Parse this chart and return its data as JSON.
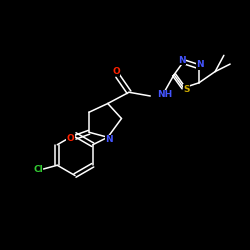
{
  "bg_color": "#000000",
  "bond_color": "#ffffff",
  "atom_colors": {
    "N": "#4455ff",
    "O": "#ff2200",
    "S": "#ccaa00",
    "Cl": "#33cc33",
    "C": "#ffffff"
  },
  "font_size": 6.5,
  "fig_width": 2.5,
  "fig_height": 2.5,
  "dpi": 100
}
